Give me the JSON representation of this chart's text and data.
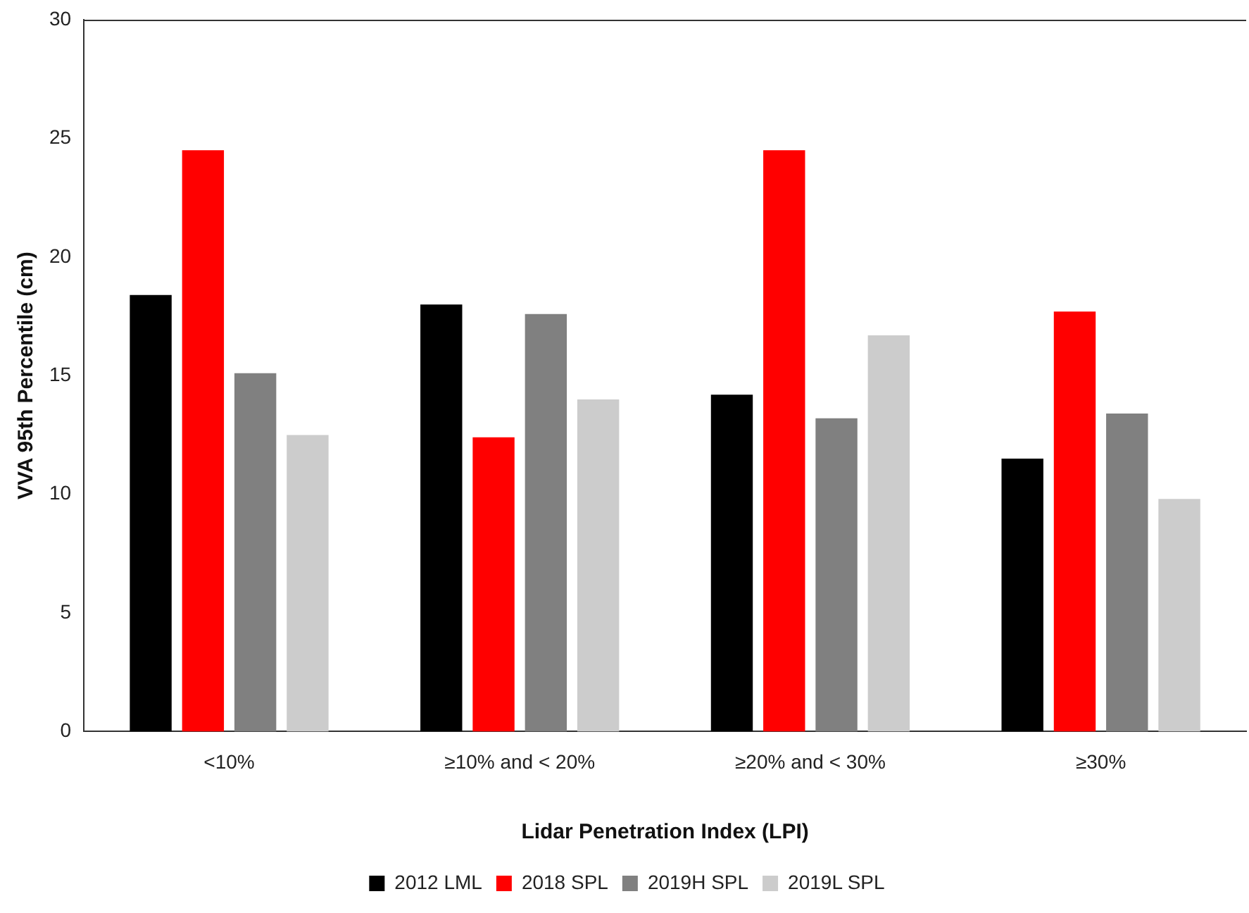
{
  "chart_data": {
    "type": "bar",
    "xlabel": "Lidar Penetration Index (LPI)",
    "ylabel": "VVA 95th Percentile (cm)",
    "categories": [
      "<10%",
      "≥10% and < 20%",
      "≥20% and < 30%",
      "≥30%"
    ],
    "series": [
      {
        "name": "2012 LML",
        "color": "#000000",
        "values": [
          18.4,
          18.0,
          14.2,
          11.5
        ]
      },
      {
        "name": "2018 SPL",
        "color": "#ff0000",
        "values": [
          24.5,
          12.4,
          24.5,
          17.7
        ]
      },
      {
        "name": "2019H SPL",
        "color": "#808080",
        "values": [
          15.1,
          17.6,
          13.2,
          13.4
        ]
      },
      {
        "name": "2019L SPL",
        "color": "#cccccc",
        "values": [
          12.5,
          14.0,
          16.7,
          9.8
        ]
      }
    ],
    "ylim": [
      0,
      30
    ],
    "yticks": [
      0,
      5,
      10,
      15,
      20,
      25,
      30
    ],
    "grid": false,
    "legend": "bottom"
  }
}
